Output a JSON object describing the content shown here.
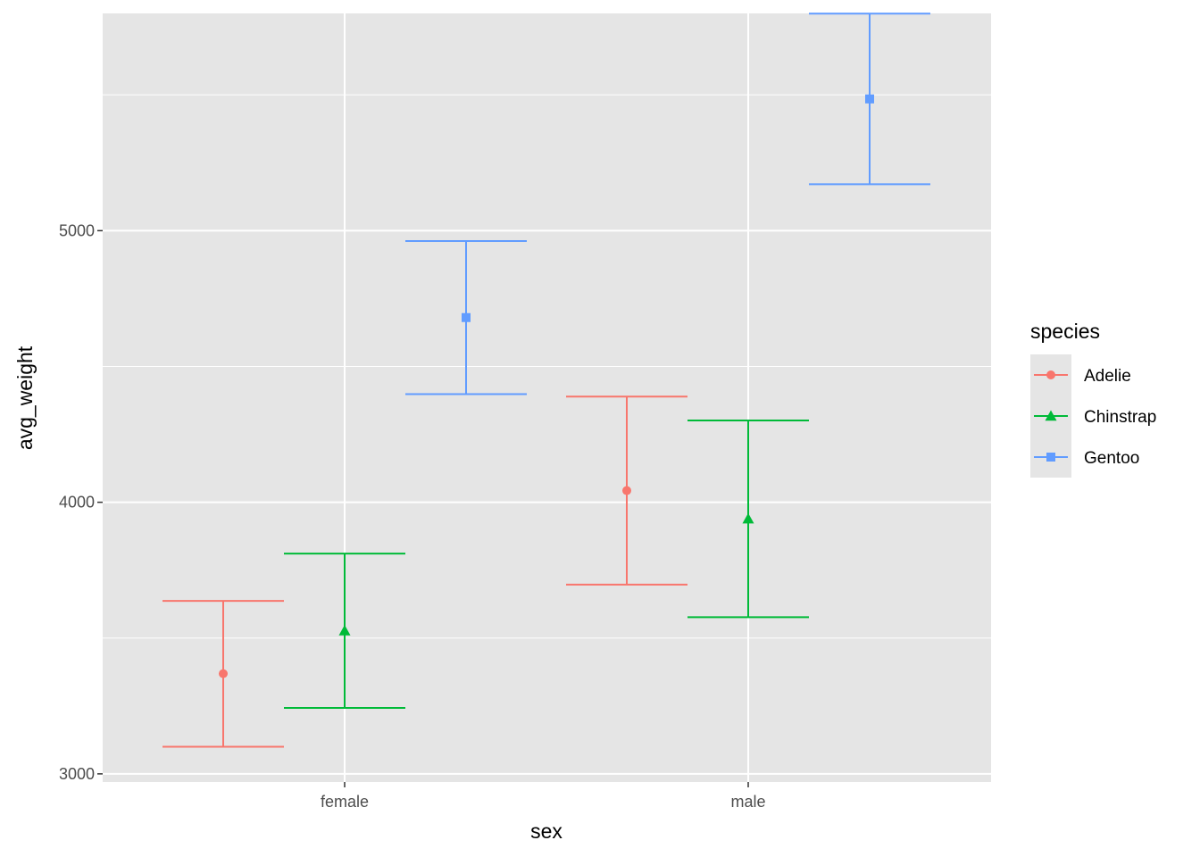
{
  "chart_data": {
    "type": "errorbar",
    "xlabel": "sex",
    "ylabel": "avg_weight",
    "categories": [
      "female",
      "male"
    ],
    "ylim": [
      2970,
      5800
    ],
    "yticks": [
      3000,
      4000,
      5000
    ],
    "grid": true,
    "legend": {
      "title": "species",
      "position": "right"
    },
    "series": [
      {
        "name": "Adelie",
        "color": "#F8766D",
        "shape": "circle",
        "points": [
          {
            "x": "female",
            "mean": 3369,
            "lower": 3100,
            "upper": 3637
          },
          {
            "x": "male",
            "mean": 4043,
            "lower": 3697,
            "upper": 4389
          }
        ]
      },
      {
        "name": "Chinstrap",
        "color": "#00BA38",
        "shape": "triangle",
        "points": [
          {
            "x": "female",
            "mean": 3527,
            "lower": 3243,
            "upper": 3811
          },
          {
            "x": "male",
            "mean": 3939,
            "lower": 3577,
            "upper": 4301
          }
        ]
      },
      {
        "name": "Gentoo",
        "color": "#619CFF",
        "shape": "square",
        "points": [
          {
            "x": "female",
            "mean": 4680,
            "lower": 4398,
            "upper": 4962
          },
          {
            "x": "male",
            "mean": 5485,
            "lower": 5171,
            "upper": 5799
          }
        ]
      }
    ]
  }
}
